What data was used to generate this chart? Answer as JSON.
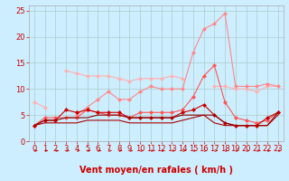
{
  "x": [
    0,
    1,
    2,
    3,
    4,
    5,
    6,
    7,
    8,
    9,
    10,
    11,
    12,
    13,
    14,
    15,
    16,
    17,
    18,
    19,
    20,
    21,
    22,
    23
  ],
  "series": [
    {
      "color": "#ffb0b0",
      "linewidth": 0.8,
      "marker": "D",
      "markersize": 2.0,
      "values": [
        7.5,
        6.5,
        null,
        null,
        null,
        null,
        null,
        null,
        null,
        null,
        null,
        null,
        null,
        null,
        null,
        null,
        null,
        null,
        null,
        null,
        null,
        null,
        null,
        null
      ]
    },
    {
      "color": "#ffb0b0",
      "linewidth": 0.8,
      "marker": "D",
      "markersize": 2.0,
      "values": [
        null,
        null,
        null,
        13.5,
        13.0,
        12.5,
        12.5,
        12.5,
        12.0,
        11.5,
        12.0,
        12.0,
        12.0,
        12.5,
        12.0,
        null,
        null,
        null,
        null,
        null,
        null,
        null,
        null,
        null
      ]
    },
    {
      "color": "#ffb0b0",
      "linewidth": 0.8,
      "marker": "D",
      "markersize": 2.0,
      "values": [
        null,
        null,
        null,
        null,
        null,
        null,
        null,
        null,
        null,
        null,
        null,
        null,
        null,
        null,
        null,
        null,
        null,
        10.5,
        10.5,
        10.0,
        10.0,
        9.5,
        10.5,
        10.5
      ]
    },
    {
      "color": "#ff8888",
      "linewidth": 0.8,
      "marker": "D",
      "markersize": 2.0,
      "values": [
        null,
        null,
        null,
        null,
        5.0,
        6.5,
        8.0,
        9.5,
        8.0,
        8.0,
        9.5,
        10.5,
        10.0,
        10.0,
        10.0,
        17.0,
        21.5,
        22.5,
        24.5,
        10.5,
        10.5,
        10.5,
        11.0,
        10.5
      ]
    },
    {
      "color": "#ff5555",
      "linewidth": 0.8,
      "marker": "D",
      "markersize": 2.0,
      "values": [
        3.0,
        4.5,
        4.5,
        4.5,
        4.5,
        6.0,
        5.5,
        5.0,
        5.0,
        4.5,
        5.5,
        5.5,
        5.5,
        5.5,
        6.0,
        8.5,
        12.5,
        14.5,
        7.5,
        4.5,
        4.0,
        3.5,
        4.0,
        5.5
      ]
    },
    {
      "color": "#cc0000",
      "linewidth": 0.8,
      "marker": "D",
      "markersize": 2.0,
      "values": [
        3.0,
        4.0,
        4.0,
        6.0,
        5.5,
        6.0,
        5.5,
        5.5,
        5.5,
        4.5,
        4.5,
        4.5,
        4.5,
        4.5,
        5.5,
        6.0,
        7.0,
        5.0,
        3.5,
        3.0,
        3.0,
        3.0,
        4.5,
        5.5
      ]
    },
    {
      "color": "#880000",
      "linewidth": 0.8,
      "marker": null,
      "markersize": 0,
      "values": [
        3.0,
        4.0,
        4.0,
        4.5,
        4.5,
        4.5,
        5.0,
        5.0,
        5.0,
        4.5,
        4.5,
        4.5,
        4.5,
        4.5,
        5.0,
        5.0,
        5.0,
        5.0,
        3.5,
        3.0,
        3.0,
        3.0,
        3.0,
        5.5
      ]
    },
    {
      "color": "#aa0000",
      "linewidth": 0.8,
      "marker": null,
      "markersize": 0,
      "values": [
        3.0,
        3.5,
        3.5,
        3.5,
        3.5,
        4.0,
        4.0,
        4.0,
        4.0,
        3.5,
        3.5,
        3.5,
        3.5,
        3.5,
        4.0,
        4.5,
        5.0,
        3.5,
        3.0,
        3.0,
        3.0,
        3.0,
        3.0,
        5.0
      ]
    }
  ],
  "xlim": [
    -0.5,
    23.5
  ],
  "ylim": [
    0,
    26
  ],
  "yticks": [
    0,
    5,
    10,
    15,
    20,
    25
  ],
  "xticks": [
    0,
    1,
    2,
    3,
    4,
    5,
    6,
    7,
    8,
    9,
    10,
    11,
    12,
    13,
    14,
    15,
    16,
    17,
    18,
    19,
    20,
    21,
    22,
    23
  ],
  "xlabel": "Vent moyen/en rafales ( km/h )",
  "background_color": "#cceeff",
  "grid_color": "#aacccc",
  "xlabel_color": "#cc0000",
  "tick_color": "#cc0000",
  "xlabel_fontsize": 7,
  "tick_fontsize": 6,
  "arrow_color": "#cc0000"
}
